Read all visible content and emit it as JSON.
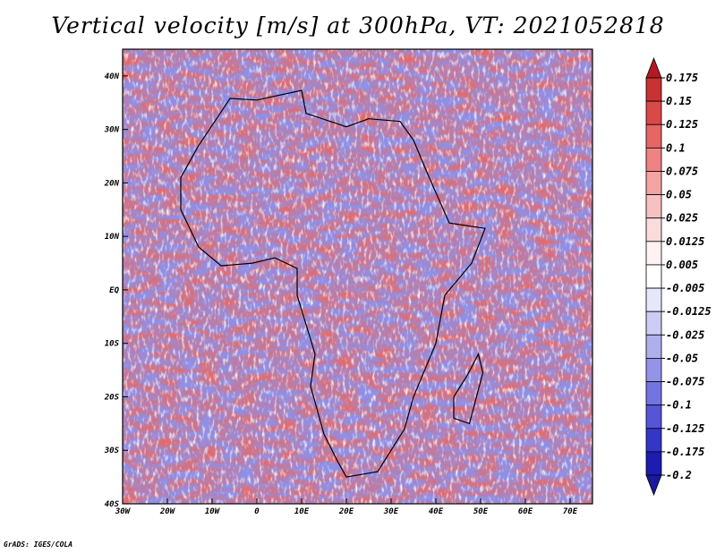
{
  "title": "Vertical velocity [m/s] at 300hPa, VT: 2021052818",
  "credit": "GrADS: IGES/COLA",
  "map": {
    "lon_range": [
      -30,
      75
    ],
    "lat_range": [
      -40,
      45
    ],
    "lon_ticks": [
      {
        "value": -30,
        "label": "30W"
      },
      {
        "value": -20,
        "label": "20W"
      },
      {
        "value": -10,
        "label": "10W"
      },
      {
        "value": 0,
        "label": "0"
      },
      {
        "value": 10,
        "label": "10E"
      },
      {
        "value": 20,
        "label": "20E"
      },
      {
        "value": 30,
        "label": "30E"
      },
      {
        "value": 40,
        "label": "40E"
      },
      {
        "value": 50,
        "label": "50E"
      },
      {
        "value": 60,
        "label": "60E"
      },
      {
        "value": 70,
        "label": "70E"
      }
    ],
    "lat_ticks": [
      {
        "value": 40,
        "label": "40N"
      },
      {
        "value": 30,
        "label": "30N"
      },
      {
        "value": 20,
        "label": "20N"
      },
      {
        "value": 10,
        "label": "10N"
      },
      {
        "value": 0,
        "label": "EQ"
      },
      {
        "value": -10,
        "label": "10S"
      },
      {
        "value": -20,
        "label": "20S"
      },
      {
        "value": -30,
        "label": "30S"
      },
      {
        "value": -40,
        "label": "40S"
      }
    ],
    "africa_outline": [
      [
        -17,
        15
      ],
      [
        -17,
        21
      ],
      [
        -13,
        27
      ],
      [
        -9,
        32
      ],
      [
        -6,
        35.8
      ],
      [
        0,
        35.5
      ],
      [
        10,
        37.3
      ],
      [
        11,
        33
      ],
      [
        20,
        30.5
      ],
      [
        25,
        32
      ],
      [
        32,
        31.5
      ],
      [
        35,
        28
      ],
      [
        38,
        22
      ],
      [
        43,
        12.5
      ],
      [
        51,
        11.5
      ],
      [
        48,
        5
      ],
      [
        42,
        -1
      ],
      [
        40,
        -10
      ],
      [
        35,
        -20
      ],
      [
        33,
        -26
      ],
      [
        27,
        -34
      ],
      [
        20,
        -35
      ],
      [
        18,
        -32
      ],
      [
        15,
        -27
      ],
      [
        12,
        -18
      ],
      [
        13,
        -12
      ],
      [
        9,
        -1
      ],
      [
        9,
        4
      ],
      [
        4,
        6
      ],
      [
        -1,
        5
      ],
      [
        -8,
        4.5
      ],
      [
        -13,
        8
      ],
      [
        -17,
        15
      ]
    ],
    "madagascar_outline": [
      [
        49.5,
        -12
      ],
      [
        50.5,
        -15.5
      ],
      [
        47.5,
        -25
      ],
      [
        44,
        -24
      ],
      [
        44,
        -20
      ],
      [
        47,
        -16
      ],
      [
        49.5,
        -12
      ]
    ]
  },
  "colorbar": {
    "levels": [
      "0.175",
      "0.15",
      "0.125",
      "0.1",
      "0.075",
      "0.05",
      "0.025",
      "0.0125",
      "0.005",
      "-0.005",
      "-0.0125",
      "-0.025",
      "-0.05",
      "-0.075",
      "-0.1",
      "-0.125",
      "-0.175",
      "-0.2"
    ],
    "colors": [
      "#b51a22",
      "#c93232",
      "#da4949",
      "#e66565",
      "#ef8383",
      "#f4a3a3",
      "#f8c1c1",
      "#fbdcdc",
      "#fff2f2",
      "#ffffff",
      "#e7e7fb",
      "#ccccf5",
      "#afafee",
      "#9393e8",
      "#7474e0",
      "#5555d8",
      "#3535c8",
      "#1c1cb0",
      "#1a1aa0"
    ]
  }
}
